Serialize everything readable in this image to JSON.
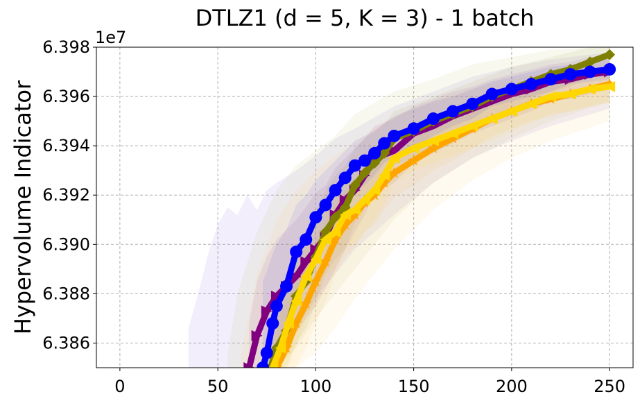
{
  "chart_data": {
    "type": "line",
    "title": "DTLZ1 (d = 5, K = 3) - 1 batch",
    "xlabel": "",
    "ylabel": "Hypervolume Indicator",
    "offset_label": "1e7",
    "xlim": [
      -12,
      262
    ],
    "ylim": [
      6.385,
      6.398
    ],
    "x_ticks": [
      0,
      50,
      100,
      150,
      200,
      250
    ],
    "x_tick_labels": [
      "0",
      "50",
      "100",
      "150",
      "200",
      "250"
    ],
    "y_ticks": [
      6.386,
      6.388,
      6.39,
      6.392,
      6.394,
      6.396,
      6.398
    ],
    "y_tick_labels": [
      "6.386",
      "6.388",
      "6.390",
      "6.392",
      "6.394",
      "6.396",
      "6.398"
    ],
    "grid": true,
    "series": [
      {
        "name": "purple",
        "color": "#800080",
        "marker": "triangle-right",
        "x": [
          66,
          70,
          75,
          80,
          85,
          90,
          95,
          100,
          105,
          110,
          115,
          120,
          125,
          130,
          140,
          150,
          160,
          170,
          180,
          190,
          200,
          210,
          220,
          230,
          240,
          250
        ],
        "y": [
          6.385,
          6.3863,
          6.3873,
          6.3879,
          6.3883,
          6.3887,
          6.3893,
          6.3898,
          6.3903,
          6.3912,
          6.3918,
          6.3922,
          6.3928,
          6.3935,
          6.3938,
          6.3945,
          6.3948,
          6.3952,
          6.3955,
          6.3958,
          6.3961,
          6.3963,
          6.3966,
          6.3967,
          6.3969,
          6.397
        ],
        "band_upper": [
          6.3868,
          6.3885,
          6.3895,
          6.3902,
          6.3906,
          6.391,
          6.3915,
          6.3921,
          6.3924,
          6.3931,
          6.3935,
          6.3939,
          6.3943,
          6.3948,
          6.3951,
          6.3956,
          6.3959,
          6.3962,
          6.3964,
          6.3967,
          6.3969,
          6.3971,
          6.3973,
          6.3974,
          6.3976,
          6.3977
        ],
        "band_lower": [
          6.385,
          6.385,
          6.385,
          6.3858,
          6.386,
          6.3864,
          6.387,
          6.3875,
          6.3882,
          6.389,
          6.3898,
          6.3905,
          6.3912,
          6.3921,
          6.3925,
          6.3933,
          6.3937,
          6.3941,
          6.3945,
          6.3948,
          6.3951,
          6.3954,
          6.3958,
          6.3959,
          6.3961,
          6.3963
        ]
      },
      {
        "name": "olive",
        "color": "#808000",
        "marker": "diamond",
        "x": [
          77,
          80,
          85,
          90,
          95,
          100,
          105,
          110,
          115,
          120,
          125,
          130,
          135,
          140,
          150,
          160,
          170,
          180,
          190,
          200,
          210,
          220,
          230,
          240,
          250
        ],
        "y": [
          6.385,
          6.3858,
          6.3865,
          6.3879,
          6.3885,
          6.3895,
          6.3905,
          6.3911,
          6.3915,
          6.3924,
          6.3929,
          6.3933,
          6.3937,
          6.3943,
          6.3946,
          6.395,
          6.3953,
          6.3956,
          6.396,
          6.3963,
          6.3966,
          6.3969,
          6.3971,
          6.3974,
          6.3977
        ],
        "band_upper": [
          6.3868,
          6.3878,
          6.3885,
          6.3898,
          6.3905,
          6.3914,
          6.3922,
          6.3928,
          6.3932,
          6.3939,
          6.3943,
          6.3946,
          6.3949,
          6.3954,
          6.3957,
          6.396,
          6.3963,
          6.3966,
          6.3969,
          6.3972,
          6.3974,
          6.3976,
          6.3978,
          6.398,
          6.3982
        ],
        "band_lower": [
          6.385,
          6.385,
          6.385,
          6.386,
          6.3866,
          6.3876,
          6.3888,
          6.3894,
          6.3898,
          6.3909,
          6.3915,
          6.392,
          6.3925,
          6.3932,
          6.3935,
          6.394,
          6.3943,
          6.3946,
          6.3951,
          6.3954,
          6.3958,
          6.3962,
          6.3964,
          6.3968,
          6.3972
        ]
      },
      {
        "name": "orange",
        "color": "#ffa500",
        "marker": "star",
        "x": [
          80,
          85,
          90,
          95,
          100,
          105,
          110,
          115,
          120,
          125,
          130,
          135,
          140,
          150,
          160,
          170,
          180,
          190,
          200,
          210,
          220,
          230,
          240,
          250
        ],
        "y": [
          6.385,
          6.3858,
          6.3868,
          6.3876,
          6.3885,
          6.3893,
          6.3902,
          6.3908,
          6.3912,
          6.3917,
          6.392,
          6.3925,
          6.3929,
          6.3934,
          6.3939,
          6.3943,
          6.3947,
          6.3951,
          6.3954,
          6.3957,
          6.3959,
          6.3961,
          6.3963,
          6.3965
        ],
        "band_upper": [
          6.3868,
          6.3877,
          6.3886,
          6.3894,
          6.3902,
          6.3909,
          6.3916,
          6.3921,
          6.3925,
          6.3929,
          6.3932,
          6.3936,
          6.3939,
          6.3944,
          6.3948,
          6.3952,
          6.3955,
          6.3958,
          6.3961,
          6.3964,
          6.3966,
          6.3968,
          6.397,
          6.3972
        ],
        "band_lower": [
          6.385,
          6.385,
          6.385,
          6.3858,
          6.3868,
          6.3877,
          6.3888,
          6.3895,
          6.3899,
          6.3905,
          6.3908,
          6.3914,
          6.3919,
          6.3924,
          6.393,
          6.3934,
          6.3939,
          6.3944,
          6.3947,
          6.395,
          6.3952,
          6.3954,
          6.3956,
          6.3958
        ]
      },
      {
        "name": "gold",
        "color": "#ffd700",
        "marker": "triangle-left",
        "x": [
          78,
          82,
          86,
          90,
          95,
          100,
          105,
          110,
          115,
          120,
          125,
          130,
          135,
          140,
          150,
          160,
          170,
          180,
          190,
          200,
          210,
          220,
          230,
          240,
          250
        ],
        "y": [
          6.385,
          6.3858,
          6.3868,
          6.3877,
          6.3887,
          6.3894,
          6.3902,
          6.3905,
          6.3912,
          6.3914,
          6.3918,
          6.3922,
          6.3928,
          6.3935,
          6.3939,
          6.3942,
          6.3945,
          6.3948,
          6.3951,
          6.3954,
          6.3957,
          6.396,
          6.3961,
          6.3963,
          6.3964
        ],
        "band_upper": [
          6.3868,
          6.3878,
          6.3887,
          6.3895,
          6.3904,
          6.391,
          6.3917,
          6.392,
          6.3925,
          6.3928,
          6.3931,
          6.3934,
          6.3939,
          6.3945,
          6.3948,
          6.3951,
          6.3954,
          6.3957,
          6.396,
          6.3962,
          6.3965,
          6.3967,
          6.3968,
          6.397,
          6.3971
        ],
        "band_lower": [
          6.385,
          6.385,
          6.385,
          6.3859,
          6.387,
          6.3878,
          6.3887,
          6.389,
          6.3899,
          6.39,
          6.3905,
          6.391,
          6.3917,
          6.3925,
          6.393,
          6.3933,
          6.3936,
          6.3939,
          6.3942,
          6.3946,
          6.3949,
          6.3953,
          6.3954,
          6.3956,
          6.3957
        ]
      },
      {
        "name": "blue",
        "color": "#0000ff",
        "marker": "circle",
        "x": [
          73,
          75,
          78,
          80,
          85,
          90,
          95,
          100,
          105,
          110,
          115,
          120,
          125,
          130,
          135,
          140,
          150,
          160,
          170,
          180,
          190,
          200,
          210,
          220,
          230,
          240,
          250
        ],
        "y": [
          6.385,
          6.3856,
          6.3868,
          6.3875,
          6.3883,
          6.3897,
          6.3902,
          6.3911,
          6.3916,
          6.3922,
          6.3927,
          6.3932,
          6.3934,
          6.3937,
          6.3941,
          6.3944,
          6.3947,
          6.3951,
          6.3954,
          6.3957,
          6.3961,
          6.3963,
          6.3965,
          6.3967,
          6.3969,
          6.397,
          6.3971
        ],
        "band_upper": [
          6.3885,
          6.3889,
          6.3896,
          6.39,
          6.3906,
          6.3916,
          6.392,
          6.3926,
          6.393,
          6.3934,
          6.3938,
          6.3942,
          6.3944,
          6.3946,
          6.3949,
          6.3952,
          6.3955,
          6.3958,
          6.396,
          6.3963,
          6.3966,
          6.3968,
          6.397,
          6.3972,
          6.3973,
          6.3974,
          6.3975
        ],
        "band_lower": [
          6.385,
          6.385,
          6.385,
          6.385,
          6.386,
          6.3878,
          6.3884,
          6.3896,
          6.3902,
          6.391,
          6.3916,
          6.3922,
          6.3924,
          6.3928,
          6.3933,
          6.3936,
          6.3939,
          6.3944,
          6.3948,
          6.3951,
          6.3956,
          6.3958,
          6.396,
          6.3962,
          6.3965,
          6.3966,
          6.3967
        ]
      }
    ],
    "background_bands": [
      {
        "color": "#9370db",
        "x": [
          35,
          40,
          45,
          50,
          55,
          60,
          65,
          70,
          75,
          80,
          90,
          100,
          110,
          120,
          140,
          160,
          180,
          200,
          220,
          250
        ],
        "upper": [
          6.3866,
          6.388,
          6.3896,
          6.3908,
          6.3915,
          6.3912,
          6.392,
          6.3914,
          6.3922,
          6.3925,
          6.393,
          6.3936,
          6.3943,
          6.3947,
          6.3956,
          6.3962,
          6.3968,
          6.3972,
          6.3975,
          6.3978
        ],
        "lower": [
          6.385,
          6.385,
          6.385,
          6.385,
          6.385,
          6.385,
          6.385,
          6.385,
          6.385,
          6.3856,
          6.3866,
          6.3878,
          6.3888,
          6.3898,
          6.3912,
          6.3925,
          6.3935,
          6.3942,
          6.3948,
          6.3955
        ]
      },
      {
        "color": "#c8c87a",
        "x": [
          55,
          60,
          70,
          80,
          90,
          100,
          110,
          120,
          140,
          160,
          180,
          200,
          220,
          250
        ],
        "upper": [
          6.3855,
          6.388,
          6.3905,
          6.3922,
          6.3932,
          6.3938,
          6.3944,
          6.3953,
          6.3962,
          6.3967,
          6.3973,
          6.3976,
          6.3979,
          6.398
        ],
        "lower": [
          6.385,
          6.385,
          6.385,
          6.385,
          6.3858,
          6.387,
          6.388,
          6.389,
          6.391,
          6.3925,
          6.3935,
          6.3943,
          6.395,
          6.3958
        ]
      },
      {
        "color": "#ffd27a",
        "x": [
          62,
          70,
          80,
          90,
          100,
          110,
          120,
          140,
          160,
          180,
          200,
          220,
          250
        ],
        "upper": [
          6.3855,
          6.3888,
          6.391,
          6.3922,
          6.393,
          6.3936,
          6.3942,
          6.3952,
          6.3958,
          6.3963,
          6.3967,
          6.397,
          6.3974
        ],
        "lower": [
          6.385,
          6.385,
          6.385,
          6.385,
          6.3856,
          6.3866,
          6.3878,
          6.3898,
          6.3914,
          6.3926,
          6.3935,
          6.3942,
          6.395
        ]
      }
    ]
  }
}
